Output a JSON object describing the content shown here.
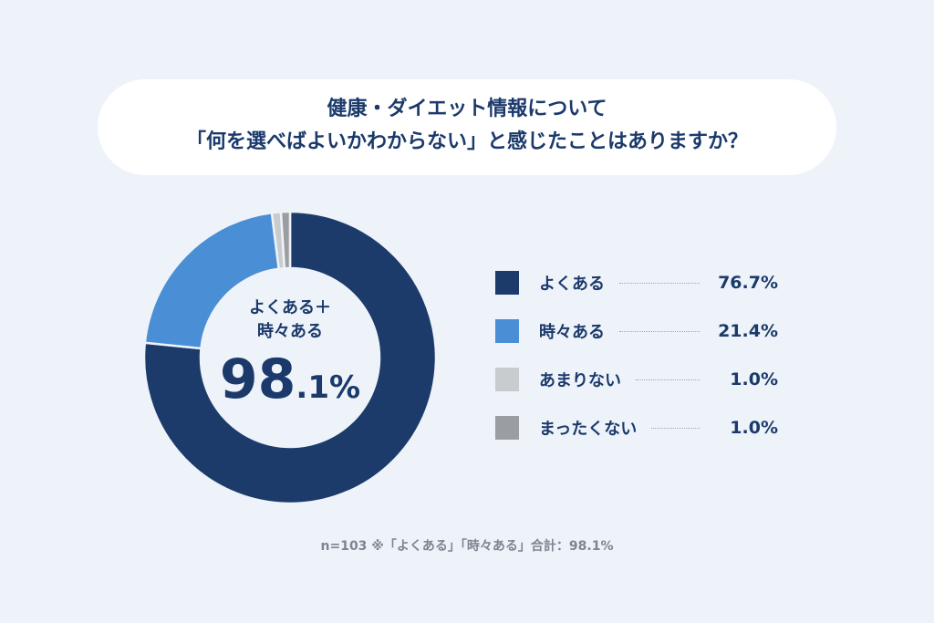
{
  "title": {
    "line1": "健康・ダイエット情報について",
    "line2": "「何を選べばよいかわからない」と感じたことはありますか？"
  },
  "center": {
    "label_line1": "よくある＋",
    "label_line2": "時々ある",
    "value_int": "98",
    "value_dec": ".1%"
  },
  "note": "n=103 ※「よくある」「時々ある」合計：98.1%",
  "chart_data": {
    "type": "pie",
    "variant": "donut",
    "start": "top, clockwise",
    "legend_position": "right",
    "categories": [
      "よくある",
      "時々ある",
      "あまりない",
      "まったくない"
    ],
    "values": [
      76.7,
      21.4,
      1.0,
      1.0
    ],
    "labels": [
      "76.7%",
      "21.4%",
      "1.0%",
      "1.0%"
    ],
    "colors": [
      "#1c3b6b",
      "#4a8fd6",
      "#c9cccf",
      "#9a9da1"
    ]
  }
}
